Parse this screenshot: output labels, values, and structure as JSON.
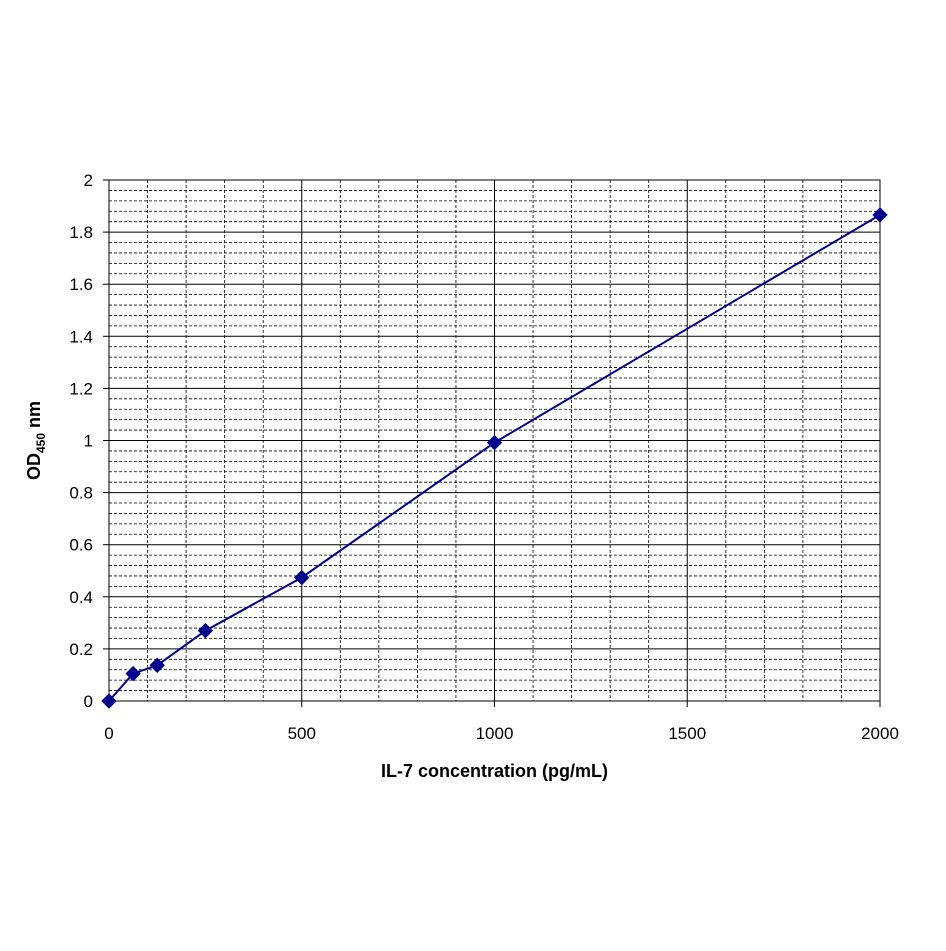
{
  "chart_data": {
    "type": "line",
    "xlabel": "IL-7 concentration (pg/mL)",
    "ylabel": {
      "prefix": "OD",
      "subscript": "450",
      "suffix": " nm"
    },
    "xlim": [
      0,
      2000
    ],
    "ylim": [
      0,
      2
    ],
    "x_ticks": [
      0,
      500,
      1000,
      1500,
      2000
    ],
    "y_ticks": [
      0,
      0.2,
      0.4,
      0.6,
      0.8,
      1,
      1.2,
      1.4,
      1.6,
      1.8,
      2
    ],
    "x_tick_labels": [
      "0",
      "500",
      "1000",
      "1500",
      "2000"
    ],
    "y_tick_labels": [
      "0",
      "0.2",
      "0.4",
      "0.6",
      "0.8",
      "1",
      "1.2",
      "1.4",
      "1.6",
      "1.8",
      "2"
    ],
    "grid": true,
    "legend": "none",
    "series": [
      {
        "x": [
          0,
          62.5,
          125,
          250,
          500,
          1000,
          2000
        ],
        "y": [
          0,
          0.105,
          0.137,
          0.27,
          0.474,
          0.992,
          1.866
        ],
        "marker": "diamond",
        "color": "#00008B"
      }
    ]
  }
}
